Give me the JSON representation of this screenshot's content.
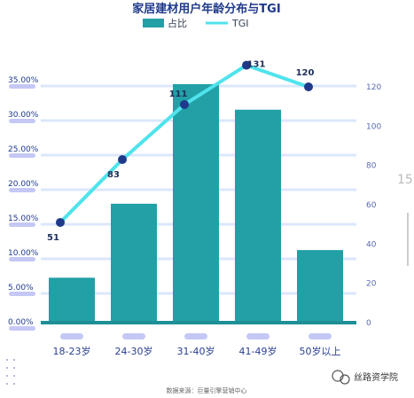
{
  "chart_data": {
    "type": "bar",
    "title": "家居建材用户年龄分布与TGI",
    "categories": [
      "18-23岁",
      "24-30岁",
      "31-40岁",
      "41-49岁",
      "50岁以上"
    ],
    "series": [
      {
        "name": "占比",
        "type": "bar",
        "axis": "left",
        "values": [
          6.5,
          17.2,
          34.5,
          30.8,
          10.5
        ],
        "color": "#22a0a6"
      },
      {
        "name": "TGI",
        "type": "line",
        "axis": "right",
        "values": [
          51,
          83,
          111,
          131,
          120
        ],
        "color": "#4fe3ec",
        "marker_color": "#1f3a8a"
      }
    ],
    "left_axis": {
      "ylim": [
        0,
        35
      ],
      "ticks": [
        "0.00%",
        "5.00%",
        "10.00%",
        "15.00%",
        "20.00%",
        "25.00%",
        "30.00%",
        "35.00%"
      ]
    },
    "right_axis": {
      "ylim": [
        0,
        120
      ],
      "ticks": [
        "0",
        "20",
        "40",
        "60",
        "80",
        "100",
        "120"
      ]
    },
    "data_labels": [
      "51",
      "83",
      "111",
      "131",
      "120"
    ],
    "grid": true,
    "legend_position": "top-center",
    "source": "数据来源：巨量引擎营销中心"
  },
  "page_number": "15",
  "watermark": "丝路资学院",
  "colors": {
    "bar": "#22a0a6",
    "line": "#4fe3ec",
    "marker": "#1f3a8a",
    "grid": "#dbe7fb",
    "label_pill": "#c5c8f5"
  }
}
